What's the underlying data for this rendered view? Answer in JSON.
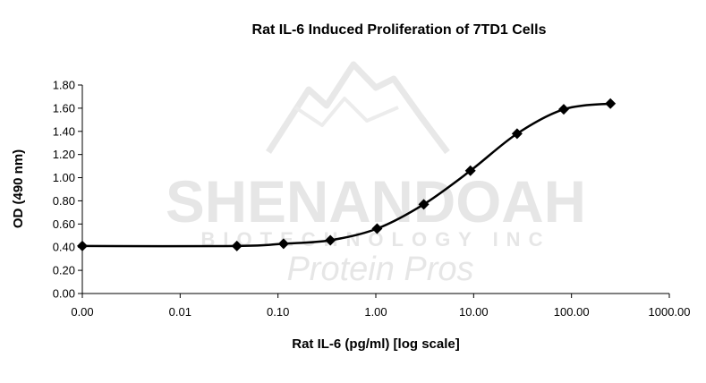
{
  "watermark": {
    "company": "SHENANDOAH",
    "subtitle": "BIOTECHNOLOGY INC",
    "tagline": "Protein Pros",
    "color": "#e6e6e6"
  },
  "chart_data": {
    "type": "line",
    "title": "Rat IL-6 Induced Proliferation of 7TD1 Cells",
    "xlabel": "Rat IL-6 (pg/ml) [log scale]",
    "ylabel": "OD (490 nm)",
    "x_scale": "log",
    "x_tick_labels": [
      "0.00",
      "0.01",
      "0.10",
      "1.00",
      "10.00",
      "100.00",
      "1000.00"
    ],
    "x_tick_values": [
      0.001,
      0.01,
      0.1,
      1,
      10,
      100,
      1000
    ],
    "y_tick_labels": [
      "0.00",
      "0.20",
      "0.40",
      "0.60",
      "0.80",
      "1.00",
      "1.20",
      "1.40",
      "1.60",
      "1.80"
    ],
    "ylim": [
      0,
      1.8
    ],
    "grid": false,
    "legend": "none",
    "marker": "diamond",
    "line_style": "smoothed",
    "line_color": "#000000",
    "series": [
      {
        "x": [
          0.001,
          0.038,
          0.114,
          0.343,
          1.03,
          3.09,
          9.26,
          27.8,
          83.3,
          250
        ],
        "y": [
          0.41,
          0.41,
          0.43,
          0.46,
          0.56,
          0.77,
          1.06,
          1.38,
          1.59,
          1.64
        ]
      }
    ]
  }
}
